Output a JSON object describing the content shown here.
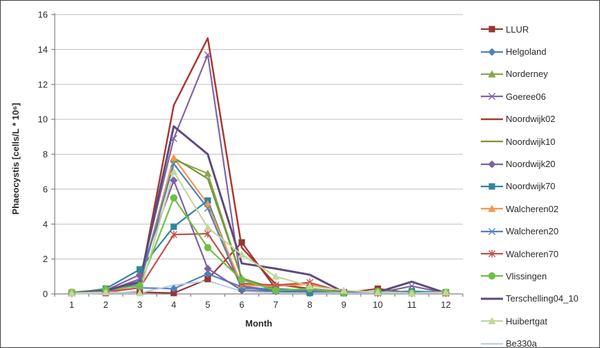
{
  "chart_data": {
    "type": "line",
    "title": "",
    "xlabel": "Month",
    "ylabel": "Phaeocystis [cells/L * 10⁶]",
    "x": [
      1,
      2,
      3,
      4,
      5,
      6,
      7,
      8,
      9,
      10,
      11,
      12
    ],
    "ylim": [
      0,
      16
    ],
    "y_ticks": [
      0,
      2,
      4,
      6,
      8,
      10,
      12,
      14,
      16
    ],
    "grid": true,
    "legend_position": "right",
    "axis_color": "#7f7f7f",
    "grid_color": "#bfbfbf",
    "tick_label_color": "#2a2a2a",
    "series": [
      {
        "name": "LLUR",
        "color": "#953735",
        "marker": "square",
        "width": 2.2,
        "values": [
          0.05,
          0.05,
          0.1,
          0.05,
          0.85,
          2.95,
          0.3,
          0.1,
          0.05,
          0.3,
          0.05,
          0.05
        ]
      },
      {
        "name": "Helgoland",
        "color": "#4f81bd",
        "marker": "diamond",
        "width": 2.2,
        "values": [
          0.05,
          0.1,
          0.35,
          0.3,
          1.15,
          0.4,
          0.15,
          0.05,
          0.05,
          0.05,
          0.05,
          0.05
        ]
      },
      {
        "name": "Norderney",
        "color": "#89a54e",
        "marker": "triangle",
        "width": 2.2,
        "values": [
          0.1,
          0.15,
          0.5,
          7.7,
          6.9,
          0.9,
          0.3,
          0.15,
          0.1,
          0.1,
          0.05,
          0.05
        ]
      },
      {
        "name": "Goeree06",
        "color": "#8064a2",
        "marker": "x",
        "width": 2.2,
        "values": [
          0.05,
          0.15,
          0.85,
          8.9,
          13.7,
          0.45,
          0.2,
          0.1,
          0.05,
          0.05,
          0.45,
          0.05
        ]
      },
      {
        "name": "Noordwijk02",
        "color": "#a63a2e",
        "marker": "none",
        "width": 2.5,
        "values": [
          0.05,
          0.2,
          0.55,
          10.8,
          14.65,
          2.65,
          0.55,
          0.3,
          0.1,
          0.1,
          0.1,
          0.05
        ]
      },
      {
        "name": "Noordwijk10",
        "color": "#77933c",
        "marker": "none",
        "width": 2.2,
        "values": [
          0.05,
          0.2,
          0.6,
          7.8,
          6.6,
          0.9,
          0.25,
          0.2,
          0.1,
          0.1,
          0.05,
          0.05
        ]
      },
      {
        "name": "Noordwijk20",
        "color": "#7d62a0",
        "marker": "diamond",
        "width": 2.2,
        "values": [
          0.05,
          0.2,
          1.1,
          6.5,
          1.45,
          0.2,
          0.15,
          0.1,
          0.05,
          0.05,
          0.05,
          0.05
        ]
      },
      {
        "name": "Noordwijk70",
        "color": "#31859c",
        "marker": "square",
        "width": 2.2,
        "values": [
          0.05,
          0.3,
          1.4,
          3.85,
          5.35,
          0.35,
          0.2,
          0.05,
          0.05,
          0.1,
          0.15,
          0.1
        ]
      },
      {
        "name": "Walcheren02",
        "color": "#f79646",
        "marker": "triangle",
        "width": 2.2,
        "values": [
          0.05,
          0.15,
          0.5,
          7.8,
          5.15,
          0.5,
          0.45,
          0.55,
          0.15,
          0.1,
          0.05,
          0.05
        ]
      },
      {
        "name": "Walcheren20",
        "color": "#4f81bd",
        "marker": "x",
        "width": 2.2,
        "values": [
          0.05,
          0.15,
          0.6,
          7.45,
          4.9,
          0.3,
          0.3,
          0.2,
          0.1,
          0.05,
          0.05,
          0.05
        ]
      },
      {
        "name": "Walcheren70",
        "color": "#c0504d",
        "marker": "asterisk",
        "width": 2.2,
        "values": [
          0.05,
          0.1,
          0.35,
          3.4,
          3.45,
          0.6,
          0.5,
          0.65,
          0.1,
          0.05,
          0.05,
          0.05
        ]
      },
      {
        "name": "Vlissingen",
        "color": "#6fbf45",
        "marker": "circle",
        "width": 2.2,
        "values": [
          0.1,
          0.25,
          0.45,
          5.5,
          2.65,
          0.8,
          0.2,
          0.3,
          0.05,
          0.15,
          0.05,
          0.1
        ]
      },
      {
        "name": "Terschelling04_10",
        "color": "#5f497a",
        "marker": "none",
        "width": 3,
        "values": [
          0.05,
          0.2,
          0.7,
          9.6,
          8.0,
          1.75,
          1.45,
          1.1,
          0.1,
          0.1,
          0.7,
          0.05
        ]
      },
      {
        "name": "Huibertgat",
        "color": "#c3d69b",
        "marker": "triangle",
        "width": 2.2,
        "values": [
          0.05,
          0.1,
          0.05,
          7.0,
          3.8,
          2.25,
          1.0,
          0.45,
          0.2,
          0.1,
          0.05,
          0.1
        ]
      },
      {
        "name": "Be330a",
        "color": "#b9cde5",
        "marker": "none",
        "width": 2,
        "values": [
          0.0,
          0.05,
          0.05,
          0.5,
          0.75,
          0.15,
          0.05,
          0.05,
          0.05,
          0.05,
          0.05,
          0.05
        ]
      }
    ]
  }
}
